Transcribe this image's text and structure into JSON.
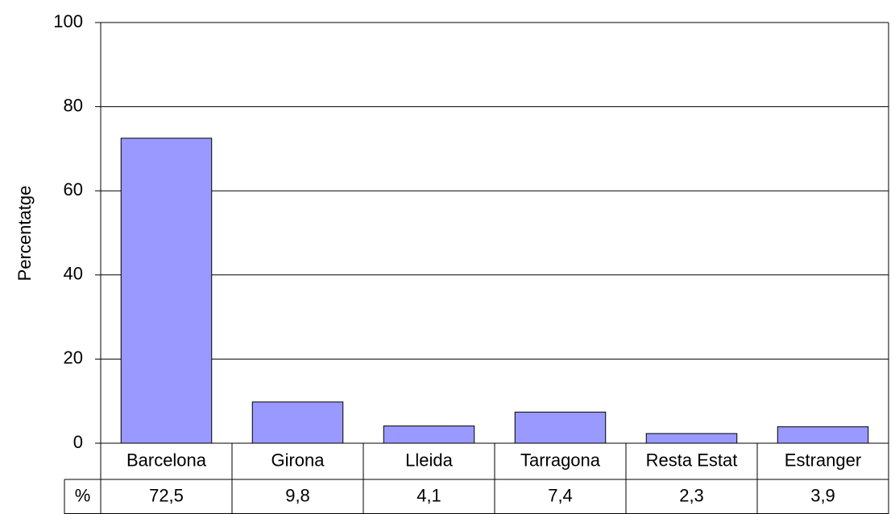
{
  "chart_data": {
    "type": "bar",
    "y_label": "Percentatge",
    "categories": [
      "Barcelona",
      "Girona",
      "Lleida",
      "Tarragona",
      "Resta Estat",
      "Estranger"
    ],
    "series": [
      {
        "name": "%",
        "color": "#9999ff",
        "values": [
          72.5,
          9.8,
          4.1,
          7.4,
          2.3,
          3.9
        ],
        "value_labels": [
          "72,5",
          "9,8",
          "4,1",
          "7,4",
          "2,3",
          "3,9"
        ]
      }
    ],
    "ylim": [
      0,
      100
    ],
    "yticks": [
      0,
      20,
      40,
      60,
      80,
      100
    ],
    "grid": true
  }
}
